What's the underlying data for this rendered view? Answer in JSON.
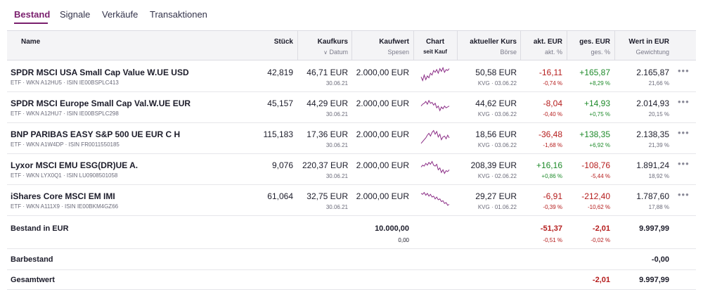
{
  "tabs": [
    {
      "label": "Bestand",
      "active": true
    },
    {
      "label": "Signale",
      "active": false
    },
    {
      "label": "Verkäufe",
      "active": false
    },
    {
      "label": "Transaktionen",
      "active": false
    }
  ],
  "table": {
    "headers": {
      "name": "Name",
      "stueck": "Stück",
      "kaufkurs": "Kaufkurs",
      "kaufkurs_sub": "Datum",
      "kaufwert": "Kaufwert",
      "kaufwert_sub": "Spesen",
      "chart": "Chart",
      "chart_sub": "seit Kauf",
      "akt_kurs": "aktueller Kurs",
      "akt_kurs_sub": "Börse",
      "akt_eur": "akt. EUR",
      "akt_eur_sub": "akt. %",
      "ges_eur": "ges. EUR",
      "ges_eur_sub": "ges. %",
      "wert": "Wert in EUR",
      "wert_sub": "Gewichtung"
    },
    "rows": [
      {
        "name": "SPDR MSCI USA Small Cap Value W.UE USD",
        "meta": "ETF · WKN A12HU5 · ISIN IE00BSPLC413",
        "stueck": "42,819",
        "kaufkurs": "46,71 EUR",
        "datum": "30.06.21",
        "kaufwert": "2.000,00 EUR",
        "kurs": "50,58 EUR",
        "boerse": "KVG · 03.06.22",
        "akt_eur": "-16,11",
        "akt_pct": "-0,74 %",
        "akt_sign": "neg",
        "ges_eur": "+165,87",
        "ges_pct": "+8,29 %",
        "ges_sign": "pos",
        "wert": "2.165,87",
        "gewichtung": "21,66 %",
        "spark": [
          0.55,
          0.75,
          0.45,
          0.7,
          0.5,
          0.6,
          0.35,
          0.45,
          0.2,
          0.3,
          0.15,
          0.35,
          0.1,
          0.25,
          0.05,
          0.3,
          0.15,
          0.2,
          0.1
        ]
      },
      {
        "name": "SPDR MSCI Europe Small Cap Val.W.UE EUR",
        "meta": "ETF · WKN A12HU7 · ISIN IE00BSPLC298",
        "stueck": "45,157",
        "kaufkurs": "44,29 EUR",
        "datum": "30.06.21",
        "kaufwert": "2.000,00 EUR",
        "kurs": "44,62 EUR",
        "boerse": "KVG · 03.06.22",
        "akt_eur": "-8,04",
        "akt_pct": "-0,40 %",
        "akt_sign": "neg",
        "ges_eur": "+14,93",
        "ges_pct": "+0,75 %",
        "ges_sign": "pos",
        "wert": "2.014,93",
        "gewichtung": "20,15 %",
        "spark": [
          0.45,
          0.35,
          0.3,
          0.2,
          0.35,
          0.15,
          0.3,
          0.25,
          0.4,
          0.3,
          0.55,
          0.45,
          0.7,
          0.5,
          0.6,
          0.45,
          0.55,
          0.5,
          0.45
        ]
      },
      {
        "name": "BNP PARIBAS EASY S&P 500 UE EUR C H",
        "meta": "ETF · WKN A1W4DP · ISIN FR0011550185",
        "stueck": "115,183",
        "kaufkurs": "17,36 EUR",
        "datum": "30.06.21",
        "kaufwert": "2.000,00 EUR",
        "kurs": "18,56 EUR",
        "boerse": "KVG · 03.06.22",
        "akt_eur": "-36,48",
        "akt_pct": "-1,68 %",
        "akt_sign": "neg",
        "ges_eur": "+138,35",
        "ges_pct": "+6,92 %",
        "ges_sign": "pos",
        "wert": "2.138,35",
        "gewichtung": "21,39 %",
        "spark": [
          0.8,
          0.7,
          0.6,
          0.5,
          0.35,
          0.25,
          0.4,
          0.2,
          0.1,
          0.3,
          0.15,
          0.45,
          0.3,
          0.6,
          0.45,
          0.4,
          0.55,
          0.35,
          0.5
        ]
      },
      {
        "name": "Lyxor MSCI EMU ESG(DR)UE A.",
        "meta": "ETF · WKN LYX0Q1 · ISIN LU0908501058",
        "stueck": "9,076",
        "kaufkurs": "220,37 EUR",
        "datum": "30.06.21",
        "kaufwert": "2.000,00 EUR",
        "kurs": "208,39 EUR",
        "boerse": "KVG · 02.06.22",
        "akt_eur": "+16,16",
        "akt_pct": "+0,86 %",
        "akt_sign": "pos",
        "ges_eur": "-108,76",
        "ges_pct": "-5,44 %",
        "ges_sign": "neg",
        "wert": "1.891,24",
        "gewichtung": "18,92 %",
        "spark": [
          0.4,
          0.3,
          0.35,
          0.2,
          0.3,
          0.15,
          0.25,
          0.1,
          0.3,
          0.35,
          0.25,
          0.55,
          0.45,
          0.7,
          0.55,
          0.75,
          0.6,
          0.65,
          0.55
        ]
      },
      {
        "name": "iShares Core MSCI EM IMI",
        "meta": "ETF · WKN A111X9 · ISIN IE00BKM4GZ66",
        "stueck": "61,064",
        "kaufkurs": "32,75 EUR",
        "datum": "30.06.21",
        "kaufwert": "2.000,00 EUR",
        "kurs": "29,27 EUR",
        "boerse": "KVG · 01.06.22",
        "akt_eur": "-6,91",
        "akt_pct": "-0,39 %",
        "akt_sign": "neg",
        "ges_eur": "-212,40",
        "ges_pct": "-10,62 %",
        "ges_sign": "neg",
        "wert": "1.787,60",
        "gewichtung": "17,88 %",
        "spark": [
          0.15,
          0.2,
          0.1,
          0.25,
          0.15,
          0.3,
          0.2,
          0.35,
          0.3,
          0.45,
          0.35,
          0.5,
          0.45,
          0.6,
          0.55,
          0.7,
          0.65,
          0.8,
          0.75
        ]
      }
    ],
    "summary": {
      "label": "Bestand in EUR",
      "kaufwert": "10.000,00",
      "spesen": "0,00",
      "akt_eur": "-51,37",
      "akt_pct": "-0,51 %",
      "ges_eur": "-2,01",
      "ges_pct": "-0,02 %",
      "wert": "9.997,99"
    },
    "cash": {
      "label": "Barbestand",
      "wert": "-0,00"
    },
    "total": {
      "label": "Gesamtwert",
      "ges_eur": "-2,01",
      "wert": "9.997,99"
    }
  },
  "colors": {
    "accent": "#7a1f6e",
    "negative": "#b51c1c",
    "positive": "#1e8a2a",
    "sparkline": "#8b2d86"
  }
}
